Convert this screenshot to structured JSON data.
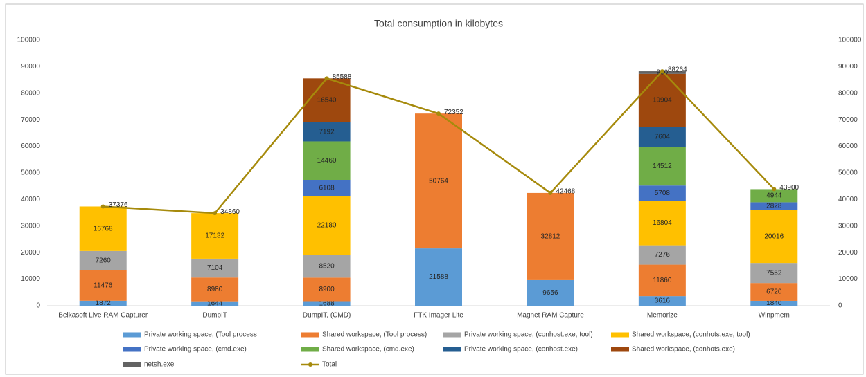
{
  "chart_data": {
    "type": "bar",
    "stacked": true,
    "title": "Total consumption in kilobytes",
    "categories": [
      "Belkasoft Live RAM Capturer",
      "DumpIT",
      "DumpIT, (CMD)",
      "FTK Imager Lite",
      "Magnet RAM Capture",
      "Memorize",
      "Winpmem"
    ],
    "series": [
      {
        "name": "Private working space, (Tool process",
        "color": "#5b9bd5",
        "values": [
          1872,
          1644,
          1688,
          21588,
          9656,
          3616,
          1840
        ]
      },
      {
        "name": "Shared workspace, (Tool process)",
        "color": "#ed7d31",
        "values": [
          11476,
          8980,
          8900,
          50764,
          32812,
          11860,
          6720
        ]
      },
      {
        "name": "Private working space, (conhost.exe, tool)",
        "color": "#a5a5a5",
        "values": [
          7260,
          7104,
          8520,
          null,
          null,
          7276,
          7552
        ]
      },
      {
        "name": "Shared workspace, (conhots.exe, tool)",
        "color": "#ffc000",
        "values": [
          16768,
          17132,
          22180,
          null,
          null,
          16804,
          20016
        ]
      },
      {
        "name": "Private working space, (cmd.exe)",
        "color": "#4472c4",
        "values": [
          null,
          null,
          6108,
          null,
          null,
          5708,
          2828
        ]
      },
      {
        "name": "Shared workspace, (cmd.exe)",
        "color": "#70ad47",
        "values": [
          null,
          null,
          14460,
          null,
          null,
          14512,
          4944
        ]
      },
      {
        "name": "Private working space, (conhost.exe)",
        "color": "#255e91",
        "values": [
          null,
          null,
          7192,
          null,
          null,
          7604,
          null
        ]
      },
      {
        "name": "Shared workspace, (conhots.exe)",
        "color": "#9e480e",
        "values": [
          null,
          null,
          16540,
          null,
          null,
          19904,
          null
        ]
      },
      {
        "name": "netsh.exe",
        "color": "#636363",
        "values": [
          null,
          null,
          null,
          null,
          null,
          980,
          null
        ]
      },
      {
        "name": "Total",
        "color": "#a68a0c",
        "axis": "y2",
        "values": [
          37376,
          34860,
          85588,
          72352,
          42468,
          88264,
          43900
        ]
      }
    ],
    "ylim": [
      0,
      100000
    ],
    "yticks": [
      0,
      10000,
      20000,
      30000,
      40000,
      50000,
      60000,
      70000,
      80000,
      90000,
      100000
    ],
    "y2lim": [
      0,
      100000
    ],
    "y2ticks": [
      0,
      10000,
      20000,
      30000,
      40000,
      50000,
      60000,
      70000,
      80000,
      90000,
      100000
    ],
    "grid": false
  }
}
